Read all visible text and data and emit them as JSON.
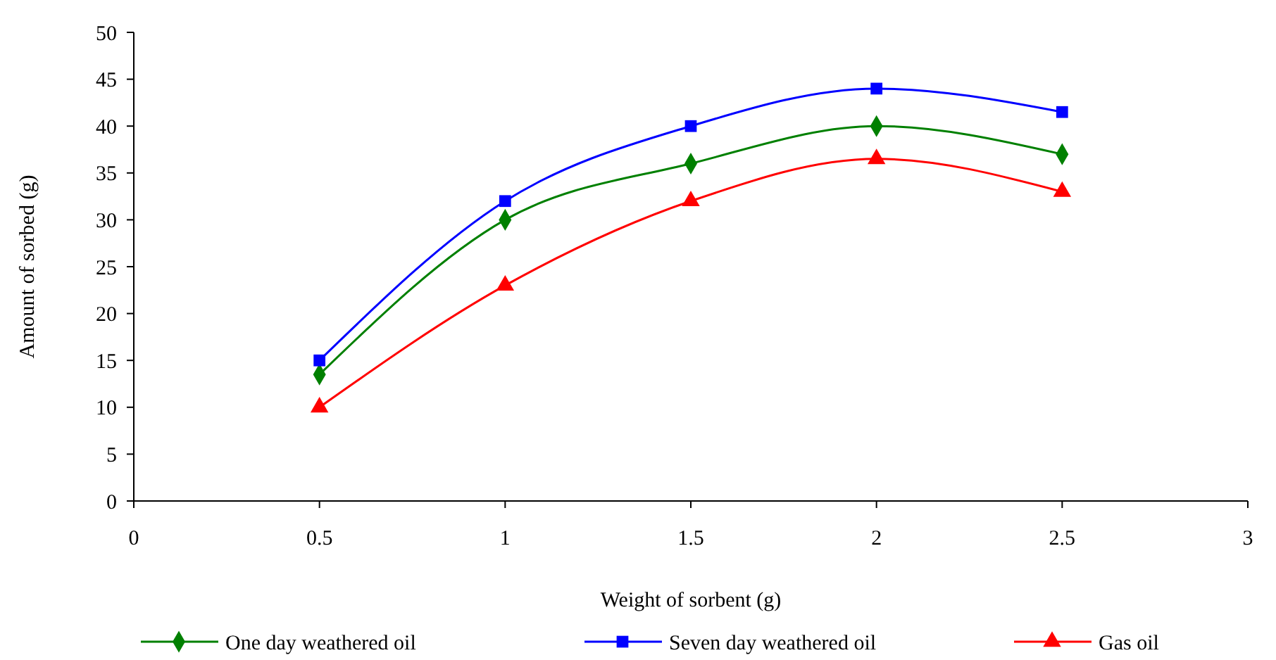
{
  "chart_data": {
    "type": "line",
    "xlabel": "Weight of sorbent (g)",
    "ylabel": "Amount of sorbed (g)",
    "x": [
      0.5,
      1,
      1.5,
      2,
      2.5
    ],
    "xlim": [
      0,
      3
    ],
    "xticks": [
      0,
      0.5,
      1,
      1.5,
      2,
      2.5,
      3
    ],
    "ylim": [
      0,
      50
    ],
    "yticks": [
      0,
      5,
      10,
      15,
      20,
      25,
      30,
      35,
      40,
      45,
      50
    ],
    "grid": false,
    "legend": "bottom",
    "series": [
      {
        "name": "One day weathered oil",
        "color": "#008000",
        "marker": "diamond",
        "values": [
          13.5,
          30,
          36,
          40,
          37
        ]
      },
      {
        "name": "Seven day weathered oil",
        "color": "#0000ff",
        "marker": "square",
        "values": [
          15,
          32,
          40,
          44,
          41.5
        ]
      },
      {
        "name": "Gas oil",
        "color": "#ff0000",
        "marker": "triangle",
        "values": [
          10,
          23,
          32,
          36.5,
          33
        ]
      }
    ]
  }
}
